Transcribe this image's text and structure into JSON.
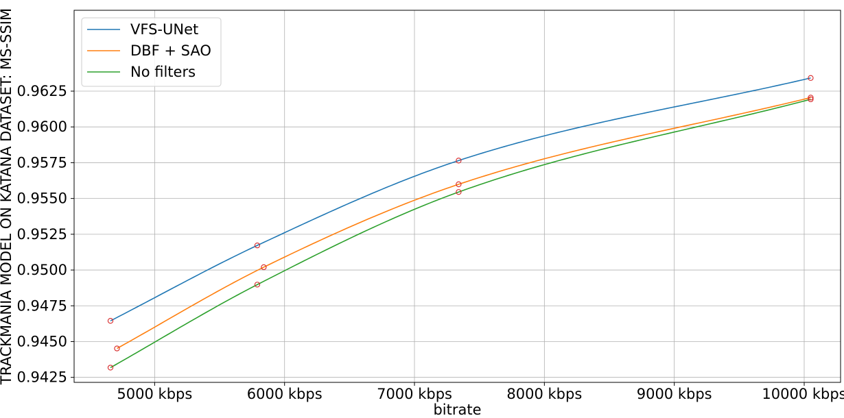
{
  "chart_data": {
    "type": "line",
    "xlabel": "bitrate",
    "ylabel": "TRACKMANIA MODEL ON KATANA DATASET: MS-SSIM",
    "xlim": [
      4380,
      10280
    ],
    "ylim": [
      0.94215,
      0.96815
    ],
    "x_ticks": [
      5000,
      6000,
      7000,
      8000,
      9000,
      10000
    ],
    "x_tick_labels": [
      "5000 kbps",
      "6000 kbps",
      "7000 kbps",
      "8000 kbps",
      "9000 kbps",
      "10000 kbps"
    ],
    "y_ticks": [
      0.9425,
      0.945,
      0.9475,
      0.95,
      0.9525,
      0.955,
      0.9575,
      0.96,
      0.9625
    ],
    "y_tick_labels": [
      "0.9425",
      "0.9450",
      "0.9475",
      "0.9500",
      "0.9525",
      "0.9550",
      "0.9575",
      "0.9600",
      "0.9625"
    ],
    "grid": true,
    "legend_position": "top-left",
    "marker_color": "#d62728",
    "series": [
      {
        "name": "VFS-UNet",
        "color": "#1f77b4",
        "points": [
          [
            4660,
            0.94645
          ],
          [
            5790,
            0.95172
          ],
          [
            7340,
            0.95765
          ],
          [
            10050,
            0.96342
          ]
        ]
      },
      {
        "name": "DBF + SAO",
        "color": "#ff7f0e",
        "points": [
          [
            4710,
            0.94452
          ],
          [
            5840,
            0.9502
          ],
          [
            7340,
            0.95599
          ],
          [
            10050,
            0.96205
          ]
        ]
      },
      {
        "name": "No filters",
        "color": "#2ca02c",
        "points": [
          [
            4660,
            0.94318
          ],
          [
            5790,
            0.94898
          ],
          [
            7340,
            0.95545
          ],
          [
            10050,
            0.96193
          ]
        ]
      }
    ]
  }
}
